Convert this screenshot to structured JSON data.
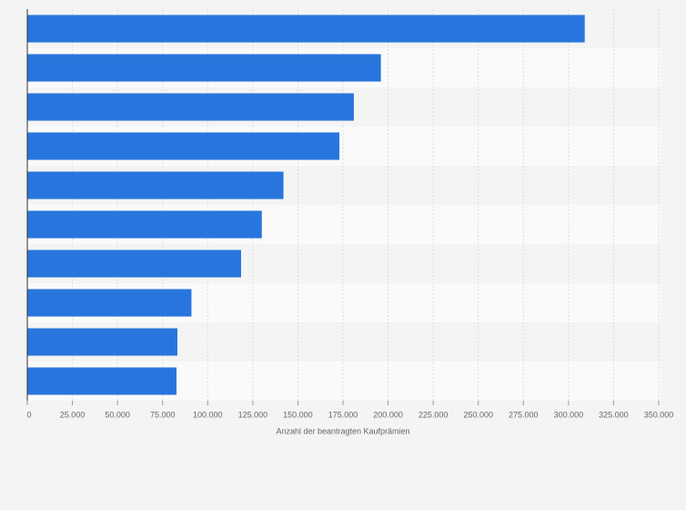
{
  "chart_data": {
    "type": "bar",
    "orientation": "horizontal",
    "x_label": "Anzahl der beantragten Kaufprämien",
    "categories": [
      null,
      null,
      null,
      null,
      null,
      null,
      null,
      null,
      null,
      null
    ],
    "values": [
      309000,
      196000,
      181000,
      173000,
      142000,
      130000,
      118500,
      91000,
      83200,
      82700
    ],
    "color": "#2876dd",
    "xlim": [
      0,
      350000
    ],
    "xticks": [
      0,
      {
        "value": 25000,
        "label": "25.000"
      },
      {
        "value": 50000,
        "label": "50.000"
      },
      {
        "value": 75000,
        "label": "75.000"
      },
      {
        "value": 100000,
        "label": "100.000"
      },
      {
        "value": 125000,
        "label": "125.000"
      },
      {
        "value": 150000,
        "label": "150.000"
      },
      {
        "value": 175000,
        "label": "175.000"
      },
      {
        "value": 200000,
        "label": "200.000"
      },
      {
        "value": 225000,
        "label": "225.000"
      },
      {
        "value": 250000,
        "label": "250.000"
      },
      {
        "value": 275000,
        "label": "275.000"
      },
      {
        "value": 300000,
        "label": "300.000"
      },
      {
        "value": 325000,
        "label": "325.000"
      },
      {
        "value": 350000,
        "label": "350.000"
      }
    ],
    "grid": true
  }
}
